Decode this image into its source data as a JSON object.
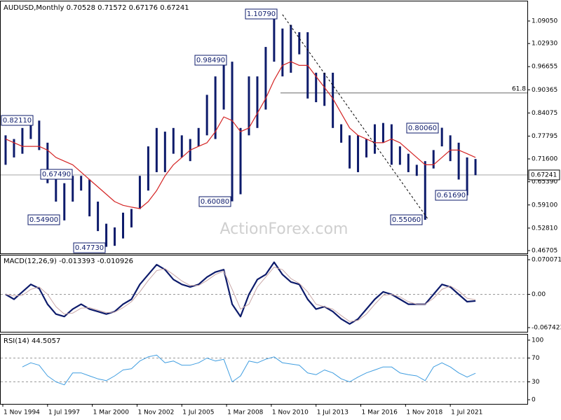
{
  "chart_data": [
    {
      "type": "range_bar",
      "title": "AUDUSD,Monthly  0.70528 0.71572 0.67176 0.67241",
      "xlim": [
        1994.708,
        2026.09
      ],
      "ylim": [
        0.4594,
        1.1437
      ],
      "yticks": [
        {
          "value": 1.0905,
          "label": "1.09050"
        },
        {
          "value": 1.0293,
          "label": "1.02930"
        },
        {
          "value": 0.96655,
          "label": "0.96655"
        },
        {
          "value": 0.90365,
          "label": "0.90365"
        },
        {
          "value": 0.84075,
          "label": "0.84075"
        },
        {
          "value": 0.77795,
          "label": "0.77795"
        },
        {
          "value": 0.716,
          "label": "0.71600"
        },
        {
          "value": 0.6539,
          "label": "0.65390"
        },
        {
          "value": 0.591,
          "label": "0.59100"
        },
        {
          "value": 0.5281,
          "label": "0.52810"
        },
        {
          "value": 0.46705,
          "label": "0.46705"
        }
      ],
      "x": [
        1995.0,
        1995.5,
        1996.0,
        1996.5,
        1997.0,
        1997.5,
        1998.0,
        1998.5,
        1999.0,
        1999.5,
        2000.0,
        2000.5,
        2001.0,
        2001.5,
        2002.0,
        2002.5,
        2003.0,
        2003.5,
        2004.0,
        2004.5,
        2005.0,
        2005.5,
        2006.0,
        2006.5,
        2007.0,
        2007.5,
        2008.0,
        2008.5,
        2009.0,
        2009.5,
        2010.0,
        2010.5,
        2011.0,
        2011.5,
        2012.0,
        2012.5,
        2013.0,
        2013.5,
        2014.0,
        2014.5,
        2015.0,
        2015.5,
        2016.0,
        2016.5,
        2017.0,
        2017.5,
        2018.0,
        2018.5,
        2019.0,
        2019.5,
        2020.0,
        2020.5,
        2021.0,
        2021.5,
        2022.0,
        2022.5,
        2023.0
      ],
      "bars": {
        "color": "#0d1b6b",
        "low": [
          0.7,
          0.72,
          0.73,
          0.77,
          0.74,
          0.65,
          0.6,
          0.549,
          0.6,
          0.63,
          0.56,
          0.52,
          0.4773,
          0.48,
          0.5,
          0.53,
          0.58,
          0.63,
          0.68,
          0.68,
          0.73,
          0.72,
          0.71,
          0.75,
          0.78,
          0.77,
          0.85,
          0.6008,
          0.62,
          0.78,
          0.8,
          0.85,
          0.98,
          0.94,
          0.95,
          1.0,
          0.88,
          0.87,
          0.86,
          0.8,
          0.76,
          0.69,
          0.68,
          0.72,
          0.73,
          0.76,
          0.7,
          0.7,
          0.68,
          0.67,
          0.5506,
          0.69,
          0.75,
          0.71,
          0.66,
          0.6169,
          0.67176
        ],
        "high": [
          0.78,
          0.77,
          0.8,
          0.8211,
          0.82,
          0.76,
          0.68,
          0.65,
          0.67,
          0.67,
          0.66,
          0.6,
          0.54,
          0.53,
          0.57,
          0.58,
          0.67,
          0.75,
          0.8,
          0.79,
          0.8,
          0.78,
          0.77,
          0.8,
          0.89,
          0.94,
          0.9849,
          0.98,
          0.8,
          0.94,
          0.94,
          1.02,
          1.1079,
          1.07,
          1.08,
          1.06,
          1.06,
          0.95,
          0.95,
          0.95,
          0.81,
          0.78,
          0.78,
          0.77,
          0.81,
          0.8136,
          0.81,
          0.75,
          0.73,
          0.7,
          0.71,
          0.74,
          0.8006,
          0.78,
          0.76,
          0.72,
          0.71572
        ]
      },
      "series": [
        {
          "color": "#d42424",
          "values": [
            0.77,
            0.76,
            0.75,
            0.75,
            0.75,
            0.74,
            0.72,
            0.71,
            0.7,
            0.68,
            0.66,
            0.64,
            0.62,
            0.6,
            0.59,
            0.585,
            0.581,
            0.6,
            0.63,
            0.67,
            0.7,
            0.72,
            0.74,
            0.75,
            0.76,
            0.79,
            0.83,
            0.82,
            0.79,
            0.8,
            0.84,
            0.88,
            0.93,
            0.97,
            0.98,
            0.97,
            0.97,
            0.94,
            0.91,
            0.88,
            0.84,
            0.8,
            0.78,
            0.77,
            0.76,
            0.76,
            0.77,
            0.76,
            0.74,
            0.72,
            0.7,
            0.7,
            0.72,
            0.74,
            0.74,
            0.73,
            0.72
          ]
        }
      ],
      "last_price": {
        "value": 0.67241,
        "label": "0.67241"
      },
      "fib_level": {
        "value": 0.895,
        "label": "61.8"
      },
      "trendline": {
        "x": [
          2011.5,
          2020.2
        ],
        "y": [
          1.1079,
          0.5506
        ]
      },
      "annotations": [
        "1.10790",
        "0.98490",
        "0.82110",
        "0.67490",
        "0.54900",
        "0.47730",
        "0.60080",
        "0.80060",
        "0.61690",
        "0.55060"
      ],
      "watermark": "ActionForex.com"
    },
    {
      "type": "line",
      "title": "MACD(12,26,9) -0.013393 -0.010926",
      "xlim": [
        1994.708,
        2026.09
      ],
      "ylim": [
        -0.0759,
        0.0786
      ],
      "yticks": [
        {
          "value": 0.070071,
          "label": "0.070071"
        },
        {
          "value": 0,
          "label": "0.00"
        },
        {
          "value": -0.067423,
          "label": "-0.067423"
        }
      ],
      "levels": [
        0
      ],
      "x": [
        1995.0,
        1995.5,
        1996.0,
        1996.5,
        1997.0,
        1997.5,
        1998.0,
        1998.5,
        1999.0,
        1999.5,
        2000.0,
        2000.5,
        2001.0,
        2001.5,
        2002.0,
        2002.5,
        2003.0,
        2003.5,
        2004.0,
        2004.5,
        2005.0,
        2005.5,
        2006.0,
        2006.5,
        2007.0,
        2007.5,
        2008.0,
        2008.5,
        2009.0,
        2009.5,
        2010.0,
        2010.5,
        2011.0,
        2011.5,
        2012.0,
        2012.5,
        2013.0,
        2013.5,
        2014.0,
        2014.5,
        2015.0,
        2015.5,
        2016.0,
        2016.5,
        2017.0,
        2017.5,
        2018.0,
        2018.5,
        2019.0,
        2019.5,
        2020.0,
        2020.5,
        2021.0,
        2021.5,
        2022.0,
        2022.5,
        2023.0
      ],
      "series": [
        {
          "color": "#0d1b6b",
          "values": [
            0.0,
            -0.01,
            0.005,
            0.02,
            0.012,
            -0.02,
            -0.04,
            -0.045,
            -0.03,
            -0.02,
            -0.03,
            -0.035,
            -0.04,
            -0.035,
            -0.02,
            -0.01,
            0.02,
            0.04,
            0.06,
            0.05,
            0.03,
            0.02,
            0.015,
            0.02,
            0.035,
            0.045,
            0.05,
            -0.02,
            -0.045,
            0.0,
            0.03,
            0.04,
            0.065,
            0.04,
            0.025,
            0.02,
            -0.01,
            -0.03,
            -0.025,
            -0.035,
            -0.05,
            -0.06,
            -0.05,
            -0.03,
            -0.01,
            0.005,
            0.0,
            -0.01,
            -0.02,
            -0.02,
            -0.02,
            0.0,
            0.02,
            0.015,
            0.0,
            -0.015,
            -0.013393
          ]
        },
        {
          "color": "#c9a8a8",
          "values": [
            0.0,
            -0.003,
            -0.002,
            0.01,
            0.015,
            0.0,
            -0.025,
            -0.04,
            -0.038,
            -0.028,
            -0.027,
            -0.032,
            -0.037,
            -0.036,
            -0.027,
            -0.015,
            0.005,
            0.028,
            0.048,
            0.052,
            0.04,
            0.027,
            0.018,
            0.018,
            0.028,
            0.04,
            0.047,
            0.01,
            -0.03,
            -0.02,
            0.015,
            0.035,
            0.055,
            0.05,
            0.032,
            0.022,
            0.005,
            -0.02,
            -0.025,
            -0.03,
            -0.043,
            -0.055,
            -0.053,
            -0.04,
            -0.02,
            -0.002,
            0.0,
            -0.005,
            -0.015,
            -0.02,
            -0.02,
            -0.008,
            0.01,
            0.017,
            0.007,
            -0.008,
            -0.010926
          ]
        }
      ]
    },
    {
      "type": "line",
      "title": "RSI(14) 44.5057",
      "xlim": [
        1994.708,
        2026.09
      ],
      "ylim": [
        -7,
        109.3
      ],
      "yticks": [
        100,
        70,
        30,
        0
      ],
      "levels": [
        70,
        30
      ],
      "xticks": [
        {
          "value": 1994.833,
          "label": "1 Nov 1994"
        },
        {
          "value": 1997.5,
          "label": "1 Jul 1997"
        },
        {
          "value": 2000.167,
          "label": "1 Mar 2000"
        },
        {
          "value": 2002.833,
          "label": "1 Nov 2002"
        },
        {
          "value": 2005.5,
          "label": "1 Jul 2005"
        },
        {
          "value": 2008.167,
          "label": "1 Mar 2008"
        },
        {
          "value": 2010.833,
          "label": "1 Nov 2010"
        },
        {
          "value": 2013.5,
          "label": "1 Jul 2013"
        },
        {
          "value": 2016.167,
          "label": "1 Mar 2016"
        },
        {
          "value": 2018.833,
          "label": "1 Nov 2018"
        },
        {
          "value": 2021.5,
          "label": "1 Jul 2021"
        }
      ],
      "x": [
        1995.0,
        1995.5,
        1996.0,
        1996.5,
        1997.0,
        1997.5,
        1998.0,
        1998.5,
        1999.0,
        1999.5,
        2000.0,
        2000.5,
        2001.0,
        2001.5,
        2002.0,
        2002.5,
        2003.0,
        2003.5,
        2004.0,
        2004.5,
        2005.0,
        2005.5,
        2006.0,
        2006.5,
        2007.0,
        2007.5,
        2008.0,
        2008.5,
        2009.0,
        2009.5,
        2010.0,
        2010.5,
        2011.0,
        2011.5,
        2012.0,
        2012.5,
        2013.0,
        2013.5,
        2014.0,
        2014.5,
        2015.0,
        2015.5,
        2016.0,
        2016.5,
        2017.0,
        2017.5,
        2018.0,
        2018.5,
        2019.0,
        2019.5,
        2020.0,
        2020.5,
        2021.0,
        2021.5,
        2022.0,
        2022.5,
        2023.0
      ],
      "series": [
        {
          "color": "#3f9de0",
          "values": [
            null,
            null,
            55,
            62,
            58,
            40,
            30,
            25,
            45,
            45,
            40,
            35,
            32,
            40,
            50,
            52,
            65,
            72,
            75,
            62,
            65,
            58,
            58,
            62,
            70,
            65,
            68,
            30,
            40,
            65,
            62,
            68,
            72,
            62,
            60,
            58,
            45,
            42,
            50,
            45,
            35,
            30,
            38,
            45,
            50,
            55,
            55,
            45,
            42,
            40,
            32,
            55,
            62,
            55,
            45,
            38,
            44.5057
          ]
        }
      ]
    }
  ]
}
